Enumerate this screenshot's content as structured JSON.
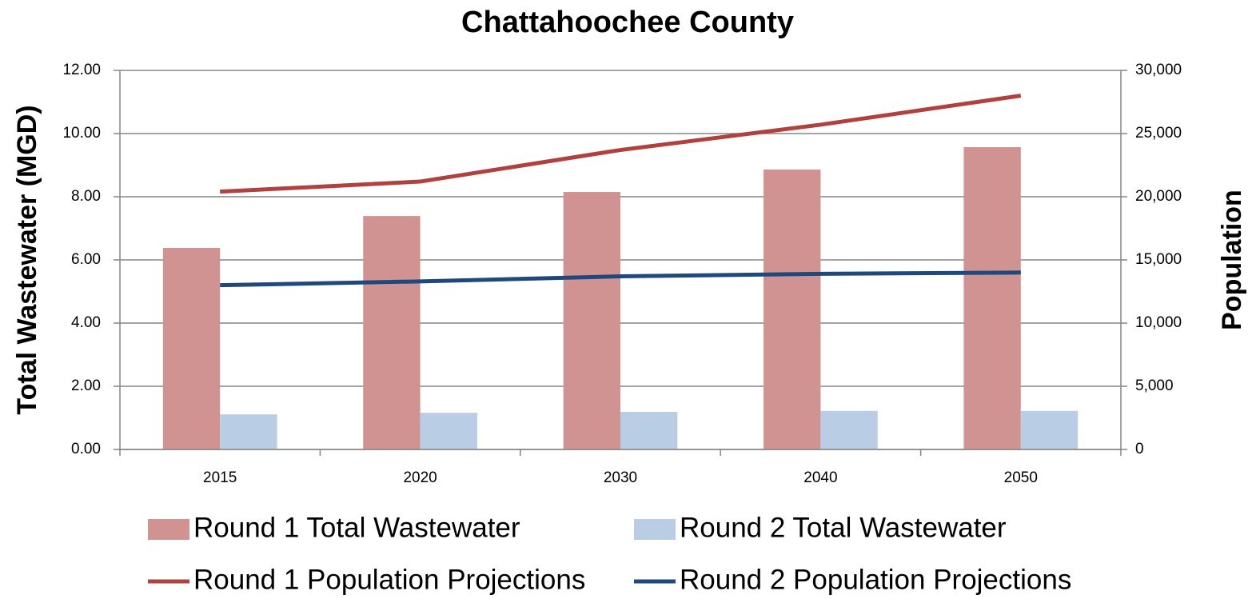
{
  "chart_data": {
    "type": "bar_line",
    "title": "Chattahoochee County",
    "y_label": "Total Wastewater (MGD)",
    "y2_label": "Population",
    "categories": [
      "2015",
      "2020",
      "2030",
      "2040",
      "2050"
    ],
    "series": [
      {
        "name": "Round 1 Total Wastewater",
        "type": "bar",
        "color": "#d19292",
        "values": [
          6.38,
          7.39,
          8.15,
          8.86,
          9.57
        ]
      },
      {
        "name": "Round 2 Total Wastewater",
        "type": "bar",
        "color": "#b9cde5",
        "values": [
          1.11,
          1.16,
          1.19,
          1.22,
          1.22
        ]
      },
      {
        "name": "Round 1 Population Projections",
        "type": "line",
        "axis": "y2",
        "color": "#b0413e",
        "values": [
          20400,
          21200,
          23700,
          25700,
          28000
        ]
      },
      {
        "name": "Round 2 Population Projections",
        "type": "line",
        "axis": "y2",
        "color": "#1f497d",
        "values": [
          13000,
          13300,
          13700,
          13900,
          14000
        ]
      }
    ],
    "ylim": [
      0,
      12
    ],
    "yticks": [
      {
        "value": 0,
        "label": "0.00"
      },
      {
        "value": 2,
        "label": "2.00"
      },
      {
        "value": 4,
        "label": "4.00"
      },
      {
        "value": 6,
        "label": "6.00"
      },
      {
        "value": 8,
        "label": "8.00"
      },
      {
        "value": 10,
        "label": "10.00"
      },
      {
        "value": 12,
        "label": "12.00"
      }
    ],
    "y2lim": [
      0,
      30000
    ],
    "y2ticks": [
      0,
      {
        "value": 5000,
        "label": "5,000"
      },
      {
        "value": 10000,
        "label": "10,000"
      },
      {
        "value": 15000,
        "label": "15,000"
      },
      {
        "value": 20000,
        "label": "20,000"
      },
      {
        "value": 25000,
        "label": "25,000"
      },
      {
        "value": 30000,
        "label": "30,000"
      }
    ],
    "grid": true,
    "legend": "bottom"
  }
}
